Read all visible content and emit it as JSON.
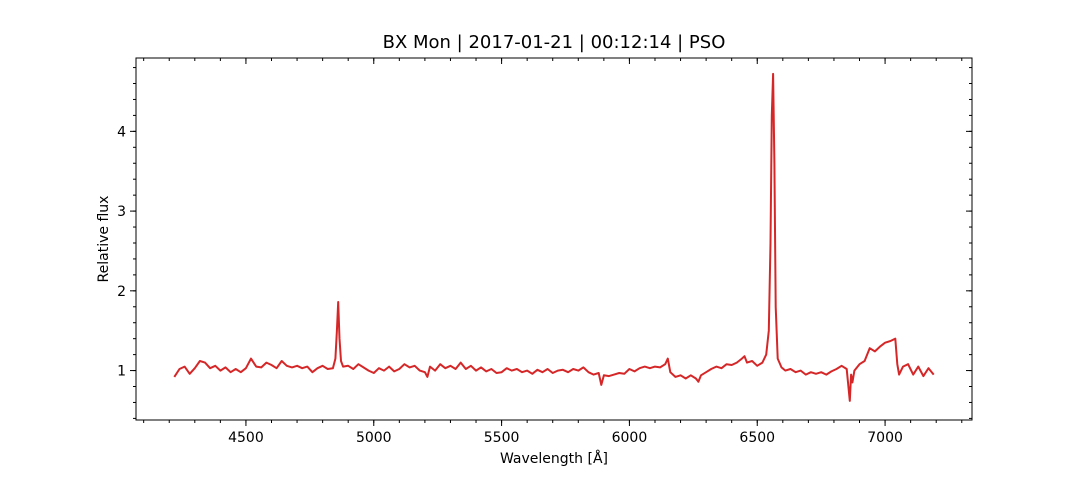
{
  "chart_data": {
    "type": "line",
    "title": "BX Mon | 2017-01-21 | 00:12:14 | PSO",
    "xlabel": "Wavelength [Å]",
    "ylabel": "Relative flux",
    "xlim": [
      4070,
      7340
    ],
    "ylim": [
      0.38,
      4.92
    ],
    "x_ticks": [
      4500,
      5000,
      5500,
      6000,
      6500,
      7000
    ],
    "y_ticks": [
      1,
      2,
      3,
      4
    ],
    "x_minor_step": 100,
    "y_minor_step": 0.2,
    "grid": false,
    "line_color": "#d62728",
    "series": [
      {
        "x": [
          4220,
          4240,
          4260,
          4280,
          4300,
          4320,
          4340,
          4360,
          4380,
          4400,
          4420,
          4440,
          4460,
          4480,
          4500,
          4520,
          4540,
          4560,
          4580,
          4600,
          4620,
          4640,
          4660,
          4680,
          4700,
          4720,
          4740,
          4760,
          4780,
          4800,
          4820,
          4840,
          4850,
          4856,
          4861,
          4866,
          4872,
          4880,
          4900,
          4920,
          4940,
          4960,
          4980,
          5000,
          5020,
          5040,
          5060,
          5080,
          5100,
          5120,
          5140,
          5160,
          5180,
          5200,
          5210,
          5220,
          5240,
          5260,
          5280,
          5300,
          5320,
          5340,
          5360,
          5380,
          5400,
          5420,
          5440,
          5460,
          5480,
          5500,
          5520,
          5540,
          5560,
          5580,
          5600,
          5620,
          5640,
          5660,
          5680,
          5700,
          5720,
          5740,
          5760,
          5780,
          5800,
          5820,
          5840,
          5860,
          5880,
          5890,
          5900,
          5920,
          5940,
          5960,
          5980,
          6000,
          6020,
          6040,
          6060,
          6080,
          6100,
          6120,
          6140,
          6150,
          6160,
          6180,
          6200,
          6220,
          6240,
          6260,
          6270,
          6280,
          6300,
          6320,
          6340,
          6360,
          6380,
          6400,
          6420,
          6440,
          6450,
          6460,
          6480,
          6500,
          6520,
          6535,
          6545,
          6552,
          6557,
          6562,
          6567,
          6572,
          6580,
          6595,
          6610,
          6630,
          6650,
          6670,
          6690,
          6710,
          6730,
          6750,
          6770,
          6790,
          6810,
          6830,
          6850,
          6862,
          6867,
          6872,
          6880,
          6900,
          6920,
          6940,
          6960,
          6980,
          7000,
          7020,
          7040,
          7048,
          7055,
          7070,
          7090,
          7110,
          7130,
          7150,
          7170,
          7190
        ],
        "y": [
          0.92,
          1.02,
          1.05,
          0.96,
          1.03,
          1.12,
          1.1,
          1.03,
          1.06,
          1.0,
          1.04,
          0.98,
          1.02,
          0.98,
          1.03,
          1.15,
          1.05,
          1.04,
          1.1,
          1.07,
          1.03,
          1.12,
          1.06,
          1.04,
          1.06,
          1.03,
          1.05,
          0.98,
          1.03,
          1.06,
          1.02,
          1.03,
          1.15,
          1.5,
          1.86,
          1.4,
          1.12,
          1.05,
          1.06,
          1.02,
          1.08,
          1.04,
          1.0,
          0.97,
          1.03,
          1.0,
          1.05,
          0.99,
          1.02,
          1.08,
          1.04,
          1.06,
          1.0,
          0.98,
          0.92,
          1.05,
          1.0,
          1.08,
          1.03,
          1.06,
          1.02,
          1.1,
          1.02,
          1.06,
          1.0,
          1.04,
          0.99,
          1.02,
          0.97,
          0.98,
          1.03,
          1.0,
          1.02,
          0.98,
          1.0,
          0.96,
          1.01,
          0.98,
          1.02,
          0.97,
          1.0,
          1.01,
          0.98,
          1.02,
          1.0,
          1.04,
          0.98,
          0.95,
          0.97,
          0.82,
          0.94,
          0.93,
          0.95,
          0.97,
          0.96,
          1.02,
          0.99,
          1.03,
          1.05,
          1.03,
          1.05,
          1.04,
          1.08,
          1.15,
          0.98,
          0.92,
          0.94,
          0.9,
          0.94,
          0.9,
          0.86,
          0.94,
          0.98,
          1.02,
          1.05,
          1.03,
          1.08,
          1.07,
          1.1,
          1.15,
          1.18,
          1.1,
          1.12,
          1.06,
          1.1,
          1.2,
          1.5,
          2.6,
          4.2,
          4.72,
          3.6,
          1.8,
          1.15,
          1.04,
          1.0,
          1.02,
          0.98,
          1.0,
          0.95,
          0.98,
          0.96,
          0.98,
          0.95,
          0.99,
          1.02,
          1.06,
          1.02,
          0.62,
          0.95,
          0.85,
          1.0,
          1.08,
          1.12,
          1.28,
          1.24,
          1.3,
          1.35,
          1.37,
          1.4,
          1.08,
          0.95,
          1.05,
          1.08,
          0.95,
          1.05,
          0.93,
          1.03,
          0.95
        ]
      }
    ]
  }
}
